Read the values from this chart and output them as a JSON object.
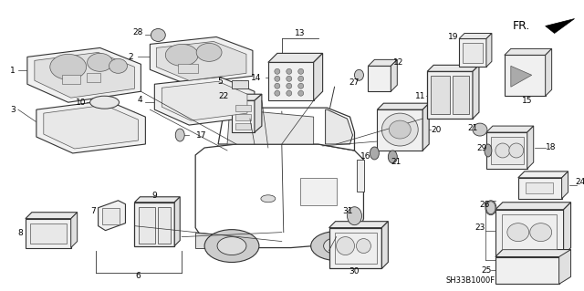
{
  "background_color": "#ffffff",
  "fig_width": 6.4,
  "fig_height": 3.19,
  "dpi": 100,
  "diagram_code": "SH33B1000F",
  "line_color": "#333333",
  "part_num_fontsize": 6.5,
  "diagram_fontsize": 6
}
